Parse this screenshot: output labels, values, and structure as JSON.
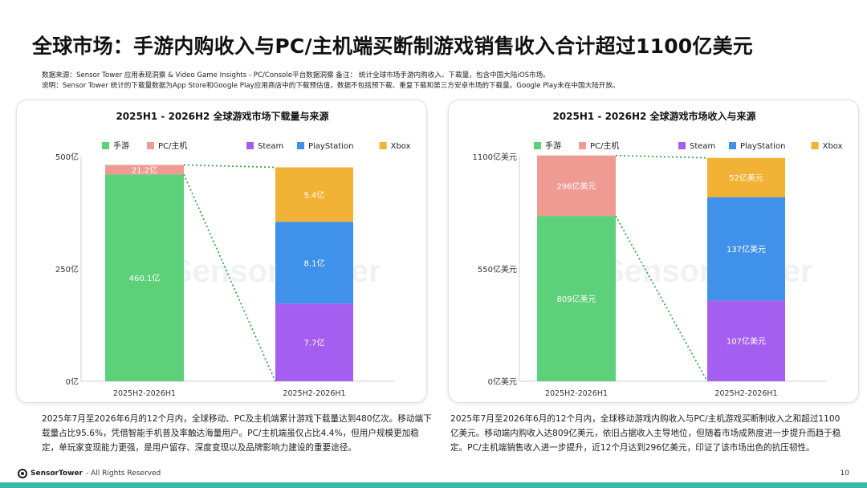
{
  "page": {
    "title": "全球市场：手游内购收入与PC/主机端买断制游戏销售收入合计超过1100亿美元",
    "source_note": "数据来源：Sensor Tower 应用表现洞察 & Video Game Insights - PC/Console平台数据洞察   备注： 统计全球市场手游内购收入、下载量，包含中国大陆iOS市场。",
    "explain_note": "说明：Sensor Tower 统计的下载量数据为App Store和Google Play应用商店中的下载预估值，数据不包括预下载、重复下载和第三方安卓市场的下载量。Google Play未在中国大陆开放。",
    "left_desc": "2025年7月至2026年6月的12个月内，全球移动、PC及主机端累计游戏下载量达到480亿次。移动端下载量占比95.6%，凭借智能手机普及率触达海量用户。PC/主机端虽仅占比4.4%，但用户规模更加稳定，单玩家变现能力更强，是用户留存、深度变现以及品牌影响力建设的重要途径。",
    "right_desc": "2025年7月至2026年6月的12个月内，全球移动游戏内购收入与PC/主机游戏买断制收入之和超过1100亿美元。移动端内购收入达809亿美元，依旧占据收入主导地位，但随着市场成熟度进一步提升而趋于稳定。PC/主机端销售收入进一步提升，近12个月达到296亿美元，印证了该市场出色的抗压韧性。",
    "footer_brand": "Sensor",
    "footer_brand2": "Tower",
    "footer_rights": " - All Rights Reserved",
    "page_number": "10",
    "watermark": "Sensor Tower"
  },
  "chart_data": [
    {
      "type": "bar",
      "title": "2025H1 - 2026H2 全球游戏市场下载量与来源",
      "ylim": [
        0,
        500
      ],
      "yticks": [
        0,
        250,
        500
      ],
      "ytick_labels": [
        "0亿",
        "250亿",
        "500亿"
      ],
      "categories": [
        "2025H2-2026H1",
        "2025H2-2026H1"
      ],
      "stacked_bar": {
        "category": "2025H2-2026H1",
        "segments": [
          {
            "name": "手游",
            "value": 460.1,
            "label": "460.1亿",
            "color": "#5dd07a"
          },
          {
            "name": "PC/主机",
            "value": 21.2,
            "label": "21.2亿",
            "color": "#ef9b93"
          }
        ]
      },
      "breakdown_bar": {
        "category": "2025H2-2026H1",
        "segments": [
          {
            "name": "Steam",
            "value": 7.7,
            "label": "7.7亿",
            "color": "#a45ff0"
          },
          {
            "name": "PlayStation",
            "value": 8.1,
            "label": "8.1亿",
            "color": "#3f91ea"
          },
          {
            "name": "Xbox",
            "value": 5.4,
            "label": "5.4亿",
            "color": "#f2b236"
          }
        ]
      },
      "legend_left": [
        {
          "name": "手游",
          "color": "#5dd07a"
        },
        {
          "name": "PC/主机",
          "color": "#ef9b93"
        }
      ],
      "legend_right": [
        {
          "name": "Steam",
          "color": "#a45ff0"
        },
        {
          "name": "PlayStation",
          "color": "#3f91ea"
        },
        {
          "name": "Xbox",
          "color": "#f2b236"
        }
      ]
    },
    {
      "type": "bar",
      "title": "2025H1 - 2026H2 全球游戏市场收入与来源",
      "ylim": [
        0,
        1100
      ],
      "yticks": [
        0,
        550,
        1100
      ],
      "ytick_labels": [
        "0亿美元",
        "550亿美元",
        "1100亿美元"
      ],
      "categories": [
        "2025H2-2026H1",
        "2025H2-2026H1"
      ],
      "stacked_bar": {
        "category": "2025H2-2026H1",
        "segments": [
          {
            "name": "手游",
            "value": 809,
            "label": "809亿美元",
            "color": "#5dd07a"
          },
          {
            "name": "PC/主机",
            "value": 296,
            "label": "296亿美元",
            "color": "#ef9b93"
          }
        ]
      },
      "breakdown_bar": {
        "category": "2025H2-2026H1",
        "segments": [
          {
            "name": "Steam",
            "value": 107,
            "label": "107亿美元",
            "color": "#a45ff0"
          },
          {
            "name": "PlayStation",
            "value": 137,
            "label": "137亿美元",
            "color": "#3f91ea"
          },
          {
            "name": "Xbox",
            "value": 52,
            "label": "52亿美元",
            "color": "#f2b236"
          }
        ]
      },
      "legend_left": [
        {
          "name": "手游",
          "color": "#5dd07a"
        },
        {
          "name": "PC/主机",
          "color": "#ef9b93"
        }
      ],
      "legend_right": [
        {
          "name": "Steam",
          "color": "#a45ff0"
        },
        {
          "name": "PlayStation",
          "color": "#3f91ea"
        },
        {
          "name": "Xbox",
          "color": "#f2b236"
        }
      ]
    }
  ]
}
